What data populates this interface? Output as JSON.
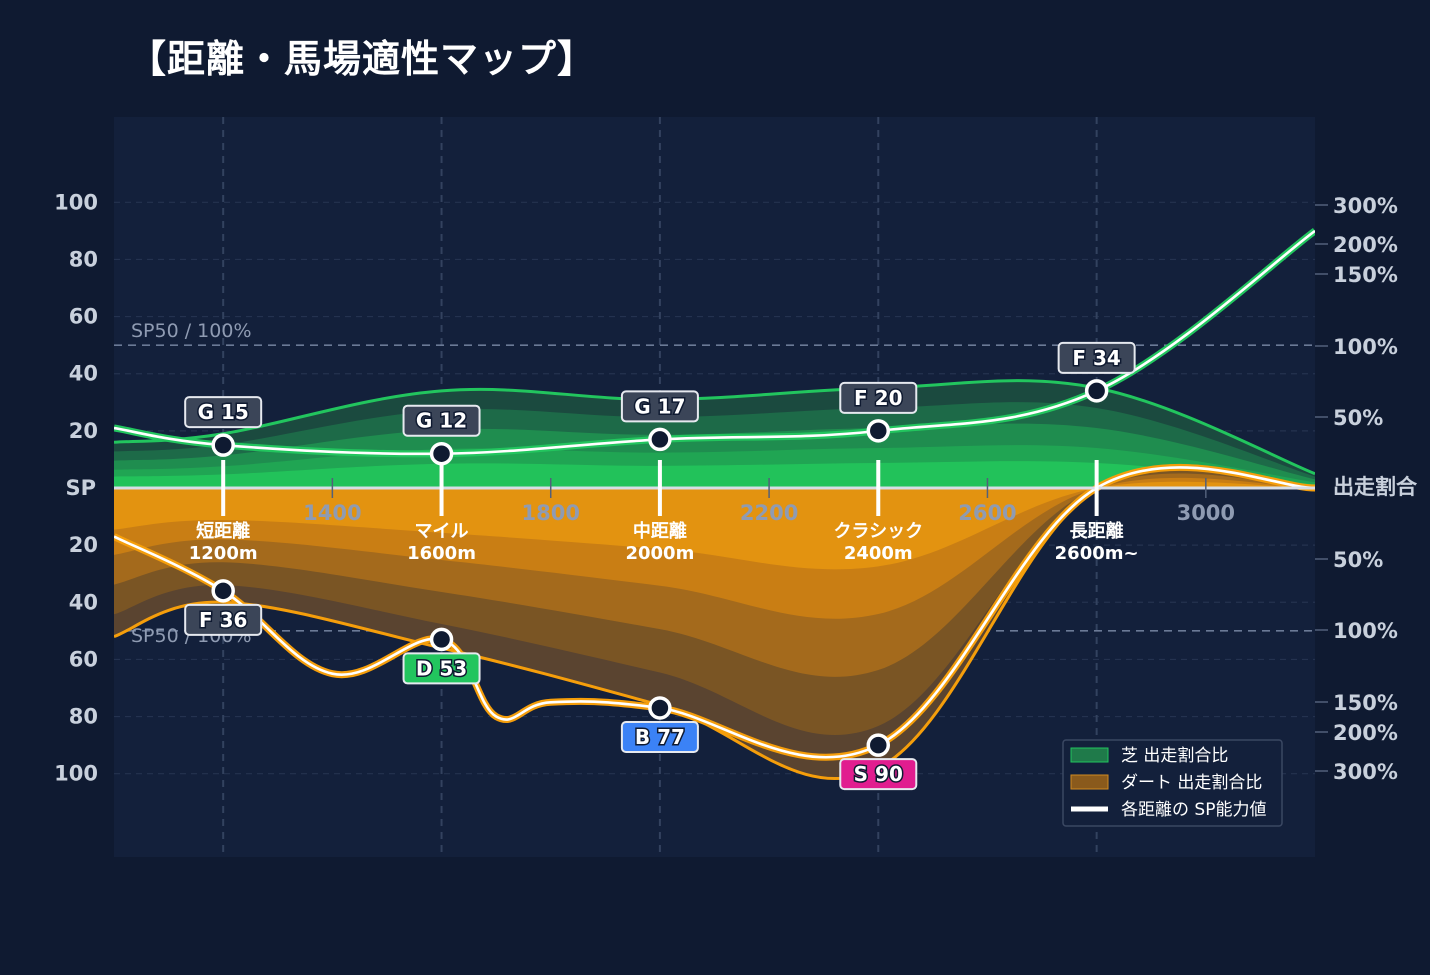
{
  "title": "【距離・馬場適性マップ】",
  "chart_data": {
    "type": "area",
    "xlim": [
      1000,
      3200
    ],
    "x_ticks": [
      1400,
      1800,
      2200,
      2600,
      3000
    ],
    "categories": [
      {
        "x": 1200,
        "line1": "短距離",
        "line2": "1200m"
      },
      {
        "x": 1600,
        "line1": "マイル",
        "line2": "1600m"
      },
      {
        "x": 2000,
        "line1": "中距離",
        "line2": "2000m"
      },
      {
        "x": 2400,
        "line1": "クラシック",
        "line2": "2400m"
      },
      {
        "x": 2800,
        "line1": "長距離",
        "line2": "2600m~"
      }
    ],
    "sp_ticks": [
      100,
      80,
      60,
      40,
      20
    ],
    "sp_center_label": "SP",
    "sp_range": [
      0,
      100
    ],
    "ratio_ticks": [
      "300%",
      "200%",
      "150%",
      "100%",
      "50%"
    ],
    "ratio_center_label": "出走割合",
    "ref_label": "SP50 / 100%",
    "turf_color": "#22c55e",
    "dirt_color": "#f59e0b",
    "turf_upper": [
      {
        "x": 1000,
        "y": 16
      },
      {
        "x": 1200,
        "y": 19
      },
      {
        "x": 1600,
        "y": 34
      },
      {
        "x": 2000,
        "y": 31
      },
      {
        "x": 2400,
        "y": 35
      },
      {
        "x": 2800,
        "y": 35
      },
      {
        "x": 3200,
        "y": 5
      }
    ],
    "turf_sp": [
      {
        "x": 1000,
        "y": 21
      },
      {
        "x": 1200,
        "y": 15
      },
      {
        "x": 1600,
        "y": 12
      },
      {
        "x": 2000,
        "y": 17
      },
      {
        "x": 2400,
        "y": 20
      },
      {
        "x": 2800,
        "y": 34
      },
      {
        "x": 3200,
        "y": 90
      }
    ],
    "dirt_upper": [
      {
        "x": 1000,
        "y": 52
      },
      {
        "x": 1200,
        "y": 40
      },
      {
        "x": 1600,
        "y": 56
      },
      {
        "x": 2000,
        "y": 76
      },
      {
        "x": 2400,
        "y": 98
      },
      {
        "x": 2800,
        "y": 0
      },
      {
        "x": 3200,
        "y": 0
      }
    ],
    "dirt_sp": [
      {
        "x": 1000,
        "y": 17
      },
      {
        "x": 1200,
        "y": 36
      },
      {
        "x": 1400,
        "y": 65
      },
      {
        "x": 1600,
        "y": 53
      },
      {
        "x": 1700,
        "y": 80
      },
      {
        "x": 1800,
        "y": 75
      },
      {
        "x": 2000,
        "y": 77
      },
      {
        "x": 2400,
        "y": 90
      },
      {
        "x": 2800,
        "y": 0
      },
      {
        "x": 3200,
        "y": 0
      }
    ],
    "turf_points": [
      {
        "x": 1200,
        "y": 15,
        "grade": "G",
        "label": "G 15",
        "color": "#3b4558"
      },
      {
        "x": 1600,
        "y": 12,
        "grade": "G",
        "label": "G 12",
        "color": "#3b4558"
      },
      {
        "x": 2000,
        "y": 17,
        "grade": "G",
        "label": "G 17",
        "color": "#3b4558"
      },
      {
        "x": 2400,
        "y": 20,
        "grade": "F",
        "label": "F 20",
        "color": "#3b4558"
      },
      {
        "x": 2800,
        "y": 34,
        "grade": "F",
        "label": "F 34",
        "color": "#3b4558"
      }
    ],
    "dirt_points": [
      {
        "x": 1200,
        "y": 36,
        "grade": "F",
        "label": "F 36",
        "color": "#3b4558"
      },
      {
        "x": 1600,
        "y": 53,
        "grade": "D",
        "label": "D 53",
        "color": "#22c55e"
      },
      {
        "x": 2000,
        "y": 77,
        "grade": "B",
        "label": "B 77",
        "color": "#3b82f6"
      },
      {
        "x": 2400,
        "y": 90,
        "grade": "S",
        "label": "S 90",
        "color": "#e11d8f"
      }
    ],
    "legend": [
      {
        "label": "芝 出走割合比",
        "color": "#1f7a4a"
      },
      {
        "label": "ダート 出走割合比",
        "color": "#8a5a1c"
      },
      {
        "label": "各距離の SP能力値",
        "color": "#ffffff"
      }
    ]
  }
}
